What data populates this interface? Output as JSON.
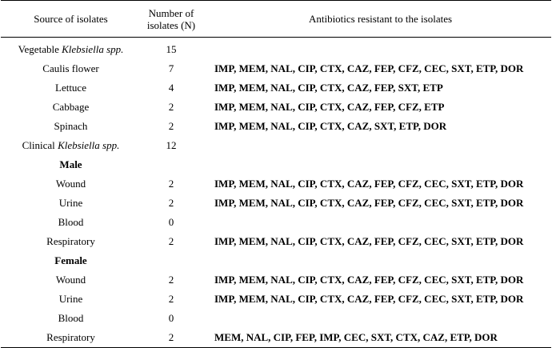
{
  "table": {
    "header": [
      "Source of isolates",
      "Number of isolates (N)",
      "Antibiotics resistant to the isolates"
    ],
    "rows": [
      {
        "source": "Vegetable",
        "source_italic": "Klebsiella spp.",
        "count": "15"
      },
      {
        "source": "Caulis flower",
        "count": "7",
        "antibiotics": "IMP, MEM, NAL, CIP, CTX, CAZ, FEP, CFZ, CEC, SXT, ETP, DOR"
      },
      {
        "source": "Lettuce",
        "count": "4",
        "antibiotics": "IMP, MEM, NAL, CIP, CTX, CAZ, FEP, SXT, ETP"
      },
      {
        "source": "Cabbage",
        "count": "2",
        "antibiotics": "IMP, MEM, NAL, CIP, CTX, CAZ, FEP, CFZ, ETP"
      },
      {
        "source": "Spinach",
        "count": "2",
        "antibiotics": "IMP, MEM, NAL, CIP, CTX, CAZ, SXT, ETP, DOR"
      },
      {
        "source": "Clinical",
        "source_italic": "Klebsiella spp.",
        "count": "12"
      },
      {
        "source": "Male",
        "bold": true
      },
      {
        "source": "Wound",
        "count": "2",
        "antibiotics": "IMP, MEM, NAL, CIP, CTX, CAZ, FEP, CFZ, CEC, SXT, ETP, DOR"
      },
      {
        "source": "Urine",
        "count": "2",
        "antibiotics": "IMP, MEM, NAL, CIP, CTX, CAZ, FEP, CFZ, CEC, SXT, ETP, DOR"
      },
      {
        "source": "Blood",
        "count": "0"
      },
      {
        "source": "Respiratory",
        "count": "2",
        "antibiotics": "IMP, MEM, NAL, CIP, CTX, CAZ, FEP, CFZ, CEC, SXT, ETP, DOR"
      },
      {
        "source": "Female",
        "bold": true
      },
      {
        "source": "Wound",
        "count": "2",
        "antibiotics": "IMP, MEM, NAL, CIP, CTX, CAZ, FEP, CFZ, CEC, SXT, ETP, DOR"
      },
      {
        "source": "Urine",
        "count": "2",
        "antibiotics": "IMP, MEM, NAL, CIP, CTX, CAZ, FEP, CFZ, CEC, SXT, ETP, DOR"
      },
      {
        "source": "Blood",
        "count": "0"
      },
      {
        "source": "Respiratory",
        "count": "2",
        "antibiotics": "MEM, NAL, CIP, FEP, IMP, CEC, SXT, CTX, CAZ, ETP, DOR"
      }
    ]
  }
}
